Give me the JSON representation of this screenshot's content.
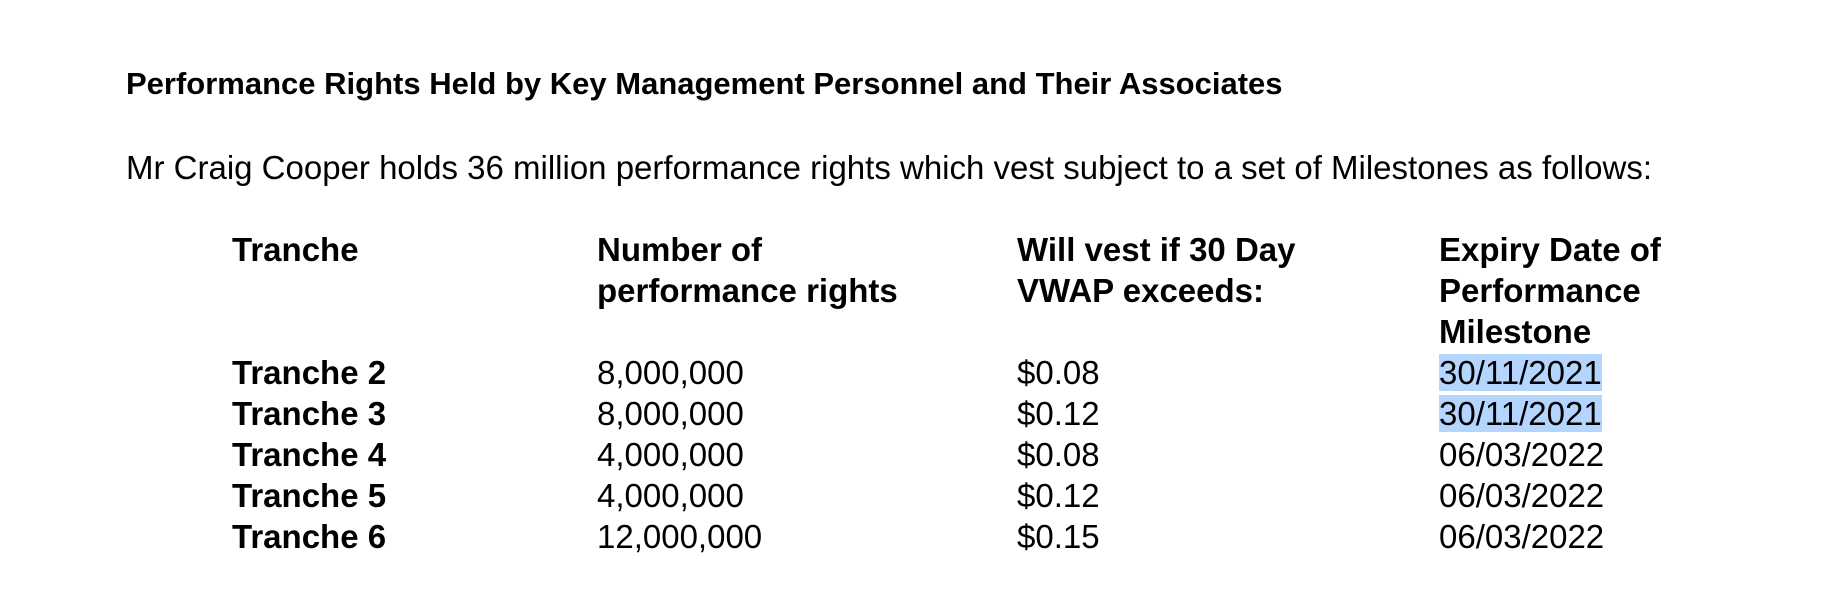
{
  "heading": "Performance Rights Held by Key Management Personnel and Their Associates",
  "intro": "Mr Craig Cooper holds 36 million performance rights which vest subject to a set of Milestones as follows:",
  "table": {
    "headers": [
      {
        "lines": [
          "Tranche"
        ]
      },
      {
        "lines": [
          "Number of",
          "performance rights"
        ]
      },
      {
        "lines": [
          "Will vest if 30 Day",
          "VWAP exceeds:"
        ]
      },
      {
        "lines": [
          "Expiry Date of",
          "Performance",
          "Milestone"
        ]
      }
    ],
    "rows": [
      {
        "tranche": "Tranche 2",
        "number": "8,000,000",
        "vwap": "$0.08",
        "expiry": "30/11/2021",
        "selected": true
      },
      {
        "tranche": "Tranche 3",
        "number": "8,000,000",
        "vwap": "$0.12",
        "expiry": "30/11/2021",
        "selected": true
      },
      {
        "tranche": "Tranche 4",
        "number": "4,000,000",
        "vwap": "$0.08",
        "expiry": "06/03/2022",
        "selected": false
      },
      {
        "tranche": "Tranche 5",
        "number": "4,000,000",
        "vwap": "$0.12",
        "expiry": "06/03/2022",
        "selected": false
      },
      {
        "tranche": "Tranche 6",
        "number": "12,000,000",
        "vwap": "$0.15",
        "expiry": "06/03/2022",
        "selected": false
      }
    ]
  },
  "colors": {
    "text": "#000000",
    "selection": "#b4d5fe"
  }
}
